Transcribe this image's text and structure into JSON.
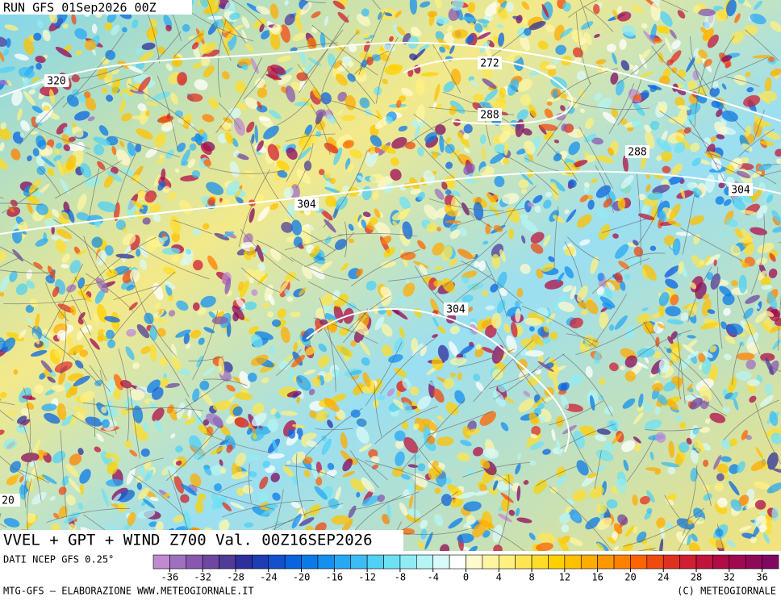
{
  "header": {
    "run": "RUN GFS 01Sep2026 00Z"
  },
  "map": {
    "contour_labels": [
      "320",
      "272",
      "288",
      "288",
      "304",
      "304",
      "304",
      "20"
    ]
  },
  "footer": {
    "title": "VVEL + GPT + WIND Z700 Val. 00Z16SEP2026",
    "source": "DATI NCEP GFS 0.25°",
    "credit_left": "MTG-GFS — ELABORAZIONE WWW.METEOGIORNALE.IT",
    "credit_right": "(C) METEOGIORNALE"
  },
  "colorbar": {
    "colors": [
      "#c08ad0",
      "#a070c0",
      "#8858b0",
      "#6e48a0",
      "#503c98",
      "#2e2e9c",
      "#1e3cb4",
      "#1450cc",
      "#0a64e0",
      "#0a7ae8",
      "#1490f0",
      "#28a8f4",
      "#3cbcf4",
      "#50d0f4",
      "#6ee0f4",
      "#90ecf4",
      "#b4f4f4",
      "#d8fafa",
      "#ffffff",
      "#fffacc",
      "#fff5a0",
      "#fff080",
      "#ffe650",
      "#ffdc28",
      "#ffd000",
      "#ffc000",
      "#ffac00",
      "#ff9800",
      "#ff8000",
      "#ff6400",
      "#f04a10",
      "#e03020",
      "#d01e32",
      "#c0143c",
      "#b00c46",
      "#a00850",
      "#900858",
      "#800860"
    ],
    "ticks": [
      -36,
      -32,
      -28,
      -24,
      -20,
      -16,
      -12,
      -8,
      -4,
      0,
      4,
      8,
      12,
      16,
      20,
      24,
      28,
      32,
      36
    ]
  }
}
